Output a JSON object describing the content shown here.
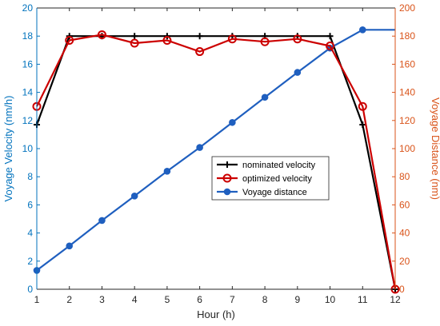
{
  "chart_data": {
    "type": "line",
    "x": [
      1,
      2,
      3,
      4,
      5,
      6,
      7,
      8,
      9,
      10,
      11,
      12
    ],
    "xlabel": "Hour (h)",
    "xlim": [
      1,
      12
    ],
    "xticks": [
      "1",
      "2",
      "3",
      "4",
      "5",
      "6",
      "7",
      "8",
      "9",
      "10",
      "11",
      "12"
    ],
    "ylabel_left": "Voyage Velocity (nm/h)",
    "ylim_left": [
      0,
      20
    ],
    "yticks_left": [
      "0",
      "2",
      "4",
      "6",
      "8",
      "10",
      "12",
      "14",
      "16",
      "18",
      "20"
    ],
    "ylabel_right": "Voyage Distance (nm)",
    "ylim_right": [
      0,
      200
    ],
    "yticks_right": [
      "0",
      "20",
      "40",
      "60",
      "80",
      "100",
      "120",
      "140",
      "160",
      "180",
      "200"
    ],
    "left_axis_color": "#0072BD",
    "right_axis_color": "#D95319",
    "grid": false,
    "legend_position": "center-right",
    "series": [
      {
        "name": "nominated velocity",
        "axis": "left",
        "color": "#000000",
        "marker": "plus",
        "x": [
          1,
          2,
          3,
          4,
          5,
          6,
          7,
          8,
          9,
          10,
          11,
          12
        ],
        "values": [
          11.7,
          18,
          18,
          18,
          18,
          18,
          18,
          18,
          18,
          18,
          11.7,
          0
        ]
      },
      {
        "name": "optimized velocity",
        "axis": "left",
        "color": "#CC0000",
        "marker": "circle",
        "x": [
          1,
          2,
          3,
          4,
          5,
          6,
          7,
          8,
          9,
          10,
          11,
          12
        ],
        "values": [
          13,
          17.7,
          18.1,
          17.5,
          17.7,
          16.9,
          17.8,
          17.6,
          17.8,
          17.3,
          13,
          0
        ]
      },
      {
        "name": "Voyage distance",
        "axis": "right",
        "color": "#1F5FBF",
        "marker": "dot",
        "x": [
          1,
          2,
          3,
          4,
          5,
          6,
          7,
          8,
          9,
          10,
          11,
          12
        ],
        "values": [
          13.4,
          30.8,
          48.9,
          66.3,
          83.9,
          100.8,
          118.6,
          136.5,
          154.2,
          171.5,
          184.5,
          184.5
        ]
      }
    ]
  }
}
